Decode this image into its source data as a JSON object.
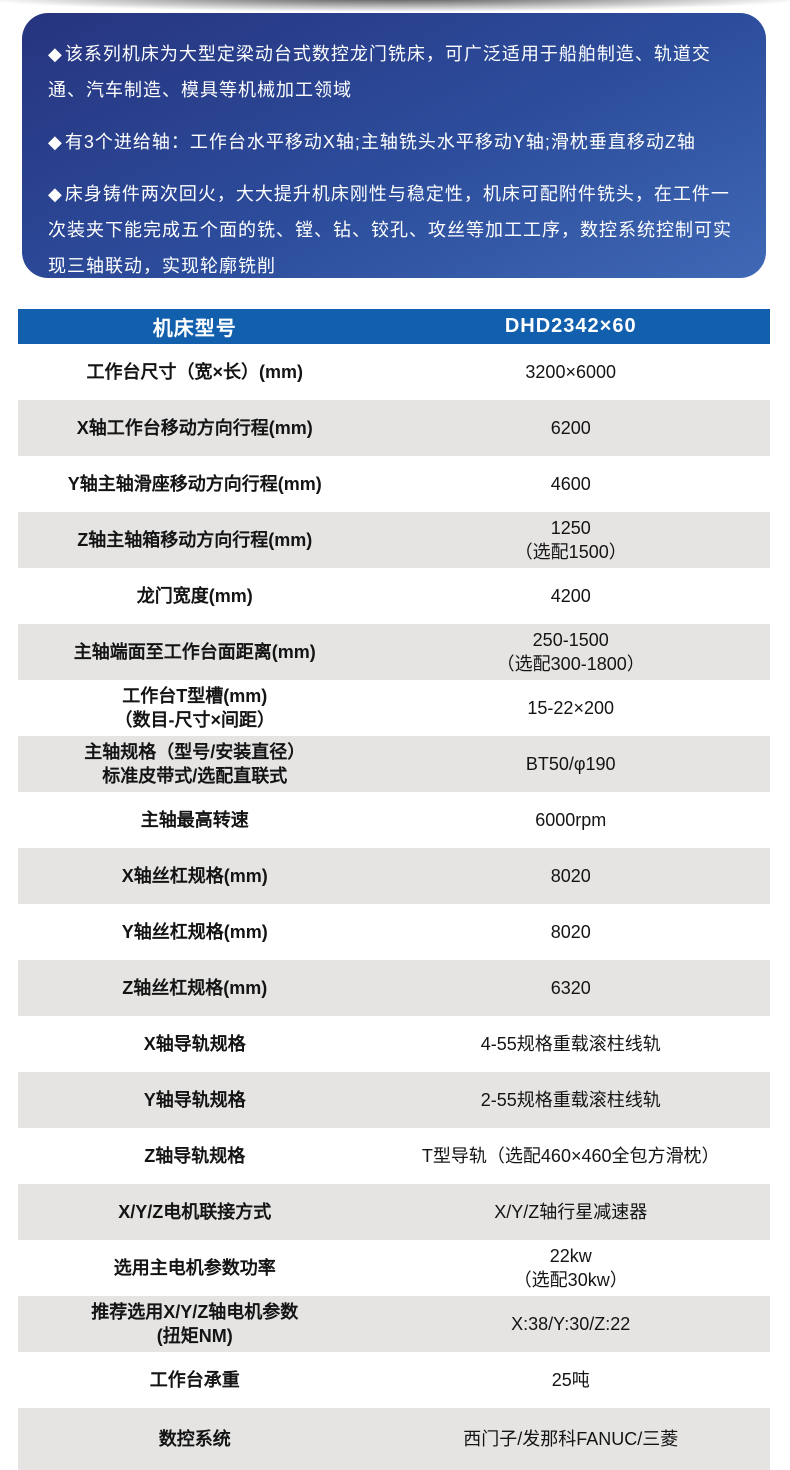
{
  "intro": {
    "bullet_marker": "◆",
    "bullets": [
      "该系列机床为大型定梁动台式数控龙门铣床，可广泛适用于船舶制造、轨道交通、汽车制造、模具等机械加工领域",
      "有3个进给轴：工作台水平移动X轴;主轴铣头水平移动Y轴;滑枕垂直移动Z轴",
      "床身铸件两次回火，大大提升机床刚性与稳定性，机床可配附件铣头，在工件一次装夹下能完成五个面的铣、镗、钻、铰孔、攻丝等加工工序，数控系统控制可实现三轴联动，实现轮廓铣削"
    ]
  },
  "spec_table": {
    "header": {
      "label": "机床型号",
      "value": "DHD2342×60"
    },
    "rows": [
      {
        "label": "工作台尺寸（宽×长）(mm)",
        "value": "3200×6000"
      },
      {
        "label": "X轴工作台移动方向行程(mm)",
        "value": "6200"
      },
      {
        "label": "Y轴主轴滑座移动方向行程(mm)",
        "value": "4600"
      },
      {
        "label": "Z轴主轴箱移动方向行程(mm)",
        "value": "1250",
        "value2": "（选配1500）"
      },
      {
        "label": "龙门宽度(mm)",
        "value": "4200"
      },
      {
        "label": "主轴端面至工作台面距离(mm)",
        "value": "250-1500",
        "value2": "（选配300-1800）"
      },
      {
        "label": "工作台T型槽(mm)",
        "label2": "（数目-尺寸×间距）",
        "value": "15-22×200"
      },
      {
        "label": "主轴规格（型号/安装直径）",
        "label2": "标准皮带式/选配直联式",
        "value": "BT50/φ190"
      },
      {
        "label": "主轴最高转速",
        "value": "6000rpm"
      },
      {
        "label": "X轴丝杠规格(mm)",
        "value": "8020"
      },
      {
        "label": "Y轴丝杠规格(mm)",
        "value": "8020"
      },
      {
        "label": "Z轴丝杠规格(mm)",
        "value": "6320"
      },
      {
        "label": "X轴导轨规格",
        "value": "4-55规格重载滚柱线轨"
      },
      {
        "label": "Y轴导轨规格",
        "value": "2-55规格重载滚柱线轨"
      },
      {
        "label": "Z轴导轨规格",
        "value": "T型导轨（选配460×460全包方滑枕）"
      },
      {
        "label": "X/Y/Z电机联接方式",
        "value": "X/Y/Z轴行星减速器"
      },
      {
        "label": "选用主电机参数功率",
        "value": "22kw",
        "value2": "（选配30kw）"
      },
      {
        "label": "推荐选用X/Y/Z轴电机参数",
        "label2": "(扭矩NM)",
        "value": "X:38/Y:30/Z:22"
      },
      {
        "label": "工作台承重",
        "value": "25吨"
      },
      {
        "label": "数控系统",
        "value": "西门子/发那科FANUC/三菱"
      }
    ]
  },
  "colors": {
    "header_blue": "#115fad",
    "card_top": "#27347f",
    "card_mid": "#2c4d9c",
    "card_bottom": "#3f68b5",
    "row_alt": "#e5e4e3",
    "text_dark": "#141414"
  }
}
